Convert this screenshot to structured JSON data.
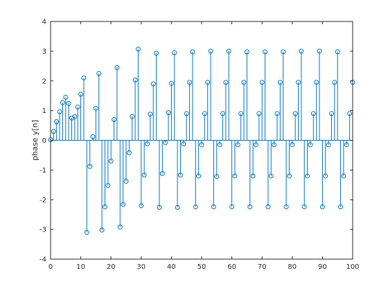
{
  "chart_data": {
    "type": "stem",
    "ylabel": "phase y[n]",
    "xlim": [
      0,
      100
    ],
    "ylim": [
      -4,
      4
    ],
    "xticks": [
      0,
      10,
      20,
      30,
      40,
      50,
      60,
      70,
      80,
      90,
      100
    ],
    "yticks": [
      -4,
      -3,
      -2,
      -1,
      0,
      1,
      2,
      3,
      4
    ],
    "grid": false,
    "color": "#0072bd",
    "series": [
      {
        "x": [
          0,
          1,
          2,
          3,
          4,
          5,
          6,
          7,
          8,
          9,
          10,
          11,
          12,
          13,
          14,
          15,
          16,
          17,
          18,
          19,
          20,
          21,
          22,
          23,
          24,
          25,
          26,
          27,
          28,
          29,
          30,
          31,
          32,
          33,
          34,
          35,
          36,
          37,
          38,
          39,
          40,
          41,
          42,
          43,
          44,
          45,
          46,
          47,
          48,
          49,
          50,
          51,
          52,
          53,
          54,
          55,
          56,
          57,
          58,
          59,
          60,
          61,
          62,
          63,
          64,
          65,
          66,
          67,
          68,
          69,
          70,
          71,
          72,
          73,
          74,
          75,
          76,
          77,
          78,
          79,
          80,
          81,
          82,
          83,
          84,
          85,
          86,
          87,
          88,
          89,
          90,
          91,
          92,
          93,
          94,
          95,
          96,
          97,
          98,
          99,
          100
        ],
        "y": [
          0.02,
          0.3,
          0.63,
          0.96,
          1.27,
          1.45,
          1.24,
          0.75,
          0.8,
          1.12,
          1.55,
          2.1,
          -3.1,
          -0.88,
          0.12,
          1.08,
          2.25,
          -3.02,
          -2.24,
          -1.52,
          -0.7,
          0.7,
          2.45,
          -2.92,
          -2.16,
          -1.38,
          -0.42,
          0.8,
          2.03,
          3.07,
          -2.2,
          -1.17,
          -0.12,
          0.88,
          1.9,
          2.93,
          -2.26,
          -1.12,
          -0.08,
          0.93,
          1.92,
          2.95,
          -2.26,
          -1.17,
          -0.12,
          0.9,
          1.95,
          2.98,
          -2.24,
          -1.2,
          -0.15,
          0.9,
          1.95,
          3.0,
          -2.24,
          -1.22,
          -0.15,
          0.9,
          1.95,
          3.0,
          -2.24,
          -1.2,
          -0.15,
          0.9,
          1.95,
          2.98,
          -2.24,
          -1.2,
          -0.15,
          0.9,
          1.95,
          2.98,
          -2.24,
          -1.2,
          -0.15,
          0.9,
          1.95,
          2.98,
          -2.24,
          -1.2,
          -0.15,
          0.9,
          1.95,
          3.0,
          -2.24,
          -1.2,
          -0.15,
          0.9,
          1.95,
          3.0,
          -2.24,
          -1.2,
          -0.15,
          0.9,
          1.95,
          2.98,
          -2.24,
          -1.2,
          -0.15,
          0.9,
          1.95
        ]
      }
    ]
  }
}
